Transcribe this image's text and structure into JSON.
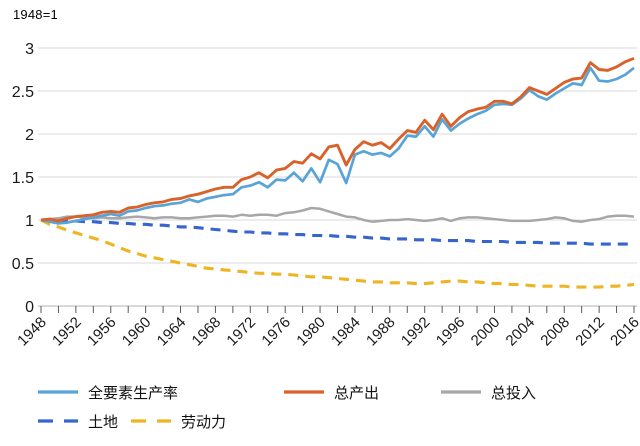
{
  "title": "1948=1",
  "chart_data": {
    "type": "line",
    "title": "1948=1",
    "xlabel": "",
    "ylabel": "",
    "x_range": [
      1948,
      2016
    ],
    "x_step": 1,
    "ylim": [
      0,
      3
    ],
    "yticks": [
      0,
      0.5,
      1,
      1.5,
      2,
      2.5,
      3
    ],
    "x_tick_minor_step": 2,
    "x_tick_label_step": 4,
    "x_tick_labels": [
      "1948",
      "1952",
      "1956",
      "1960",
      "1964",
      "1968",
      "1972",
      "1976",
      "1980",
      "1984",
      "1988",
      "1992",
      "1996",
      "2000",
      "2004",
      "2008",
      "2012",
      "2016"
    ],
    "grid": "horizontal",
    "legend_position": "bottom",
    "grid_color": "#d9d9d9",
    "axis_color": "#b3b3b3",
    "tick_color": "#595959",
    "text_color": "#1a1a1a",
    "series": [
      {
        "name": "全要素生产率",
        "color": "#58a3d8",
        "style": "solid",
        "width": 2.7,
        "values": [
          1.0,
          0.98,
          0.96,
          0.97,
          0.99,
          1.01,
          1.03,
          1.05,
          1.07,
          1.05,
          1.1,
          1.11,
          1.14,
          1.16,
          1.17,
          1.19,
          1.2,
          1.24,
          1.21,
          1.25,
          1.27,
          1.29,
          1.3,
          1.38,
          1.4,
          1.44,
          1.38,
          1.47,
          1.46,
          1.55,
          1.45,
          1.6,
          1.44,
          1.7,
          1.65,
          1.43,
          1.76,
          1.8,
          1.76,
          1.78,
          1.74,
          1.83,
          1.98,
          1.97,
          2.09,
          1.97,
          2.17,
          2.04,
          2.12,
          2.18,
          2.23,
          2.27,
          2.34,
          2.35,
          2.34,
          2.41,
          2.51,
          2.44,
          2.4,
          2.47,
          2.53,
          2.59,
          2.57,
          2.77,
          2.62,
          2.61,
          2.64,
          2.69,
          2.77
        ]
      },
      {
        "name": "总产出",
        "color": "#d9622a",
        "style": "solid",
        "width": 2.9,
        "values": [
          1.0,
          1.01,
          0.99,
          1.02,
          1.04,
          1.05,
          1.06,
          1.09,
          1.1,
          1.09,
          1.14,
          1.15,
          1.18,
          1.2,
          1.21,
          1.24,
          1.25,
          1.28,
          1.3,
          1.33,
          1.36,
          1.38,
          1.38,
          1.47,
          1.5,
          1.55,
          1.49,
          1.58,
          1.6,
          1.68,
          1.66,
          1.77,
          1.71,
          1.85,
          1.87,
          1.64,
          1.82,
          1.91,
          1.87,
          1.9,
          1.83,
          1.94,
          2.04,
          2.02,
          2.16,
          2.05,
          2.23,
          2.09,
          2.19,
          2.26,
          2.29,
          2.31,
          2.38,
          2.38,
          2.35,
          2.43,
          2.54,
          2.5,
          2.46,
          2.53,
          2.6,
          2.64,
          2.65,
          2.83,
          2.75,
          2.74,
          2.78,
          2.84,
          2.88
        ]
      },
      {
        "name": "总投入",
        "color": "#a7a7a7",
        "style": "solid",
        "width": 2.5,
        "values": [
          1.0,
          1.01,
          1.02,
          1.04,
          1.04,
          1.03,
          1.02,
          1.03,
          1.02,
          1.02,
          1.03,
          1.04,
          1.03,
          1.02,
          1.03,
          1.03,
          1.02,
          1.02,
          1.03,
          1.04,
          1.05,
          1.05,
          1.04,
          1.06,
          1.05,
          1.06,
          1.06,
          1.05,
          1.08,
          1.09,
          1.11,
          1.14,
          1.13,
          1.1,
          1.07,
          1.04,
          1.03,
          1.0,
          0.98,
          0.99,
          1.0,
          1.0,
          1.01,
          1.0,
          0.99,
          1.0,
          1.02,
          0.99,
          1.02,
          1.03,
          1.03,
          1.02,
          1.01,
          1.0,
          0.99,
          0.99,
          0.99,
          1.0,
          1.01,
          1.03,
          1.02,
          0.99,
          0.98,
          1.0,
          1.01,
          1.04,
          1.05,
          1.05,
          1.04
        ]
      },
      {
        "name": "土地",
        "color": "#3565cd",
        "style": "dashed",
        "width": 3.1,
        "values": [
          1.0,
          1.0,
          1.0,
          0.99,
          0.99,
          0.98,
          0.98,
          0.97,
          0.97,
          0.96,
          0.96,
          0.95,
          0.95,
          0.94,
          0.94,
          0.93,
          0.92,
          0.92,
          0.91,
          0.9,
          0.89,
          0.88,
          0.87,
          0.86,
          0.86,
          0.85,
          0.85,
          0.84,
          0.84,
          0.83,
          0.83,
          0.82,
          0.82,
          0.82,
          0.81,
          0.81,
          0.8,
          0.8,
          0.79,
          0.79,
          0.78,
          0.78,
          0.78,
          0.77,
          0.77,
          0.77,
          0.76,
          0.76,
          0.76,
          0.76,
          0.75,
          0.75,
          0.75,
          0.75,
          0.74,
          0.74,
          0.74,
          0.74,
          0.73,
          0.73,
          0.73,
          0.73,
          0.73,
          0.72,
          0.72,
          0.72,
          0.72,
          0.72,
          0.72
        ]
      },
      {
        "name": "劳动力",
        "color": "#eeb422",
        "style": "dashed",
        "width": 3.1,
        "values": [
          1.0,
          0.95,
          0.92,
          0.88,
          0.85,
          0.82,
          0.79,
          0.76,
          0.72,
          0.68,
          0.64,
          0.61,
          0.58,
          0.56,
          0.54,
          0.52,
          0.5,
          0.48,
          0.46,
          0.44,
          0.43,
          0.42,
          0.41,
          0.4,
          0.39,
          0.38,
          0.38,
          0.37,
          0.37,
          0.36,
          0.35,
          0.34,
          0.34,
          0.33,
          0.32,
          0.31,
          0.3,
          0.29,
          0.28,
          0.28,
          0.27,
          0.27,
          0.27,
          0.26,
          0.26,
          0.27,
          0.28,
          0.29,
          0.29,
          0.28,
          0.28,
          0.27,
          0.26,
          0.26,
          0.25,
          0.25,
          0.24,
          0.23,
          0.23,
          0.23,
          0.23,
          0.22,
          0.22,
          0.22,
          0.22,
          0.23,
          0.23,
          0.24,
          0.25
        ]
      }
    ]
  },
  "legend": {
    "rows": [
      {
        "items": [
          "全要素生产率",
          "总产出",
          "总投入"
        ]
      },
      {
        "items": [
          "土地",
          "劳动力"
        ]
      }
    ]
  }
}
